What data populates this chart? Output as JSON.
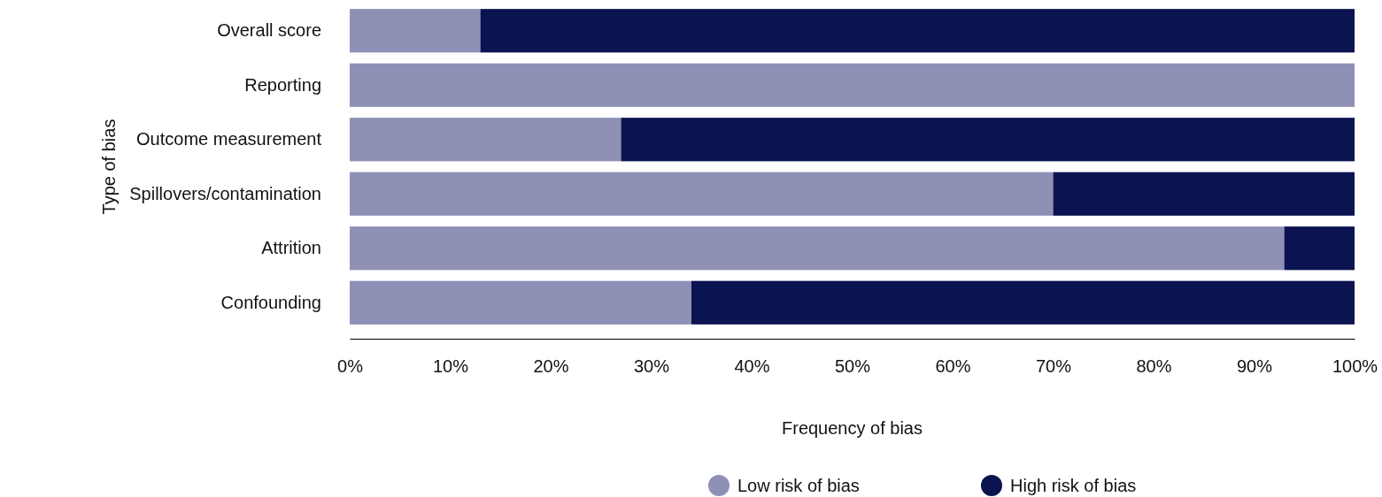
{
  "chart_data": {
    "type": "bar",
    "orientation": "horizontal",
    "stacked": true,
    "categories": [
      "Overall score",
      "Reporting",
      "Outcome measurement",
      "Spillovers/contamination",
      "Attrition",
      "Confounding"
    ],
    "series": [
      {
        "name": "Low risk of bias",
        "color": "#8e90b5",
        "values": [
          13,
          100,
          27,
          70,
          93,
          34
        ]
      },
      {
        "name": "High risk of bias",
        "color": "#0b1350",
        "values": [
          87,
          0,
          73,
          30,
          7,
          66
        ]
      }
    ],
    "xlim": [
      0,
      100
    ],
    "xticks": [
      {
        "value": 0,
        "label": "0%"
      },
      {
        "value": 10,
        "label": "10%"
      },
      {
        "value": 20,
        "label": "20%"
      },
      {
        "value": 30,
        "label": "30%"
      },
      {
        "value": 40,
        "label": "40%"
      },
      {
        "value": 50,
        "label": "50%"
      },
      {
        "value": 60,
        "label": "60%"
      },
      {
        "value": 70,
        "label": "70%"
      },
      {
        "value": 80,
        "label": "80%"
      },
      {
        "value": 90,
        "label": "90%"
      },
      {
        "value": 100,
        "label": "100%"
      }
    ],
    "xlabel": "Frequency of bias",
    "ylabel": "Type of bias",
    "legend": "bottom",
    "grid": false
  }
}
